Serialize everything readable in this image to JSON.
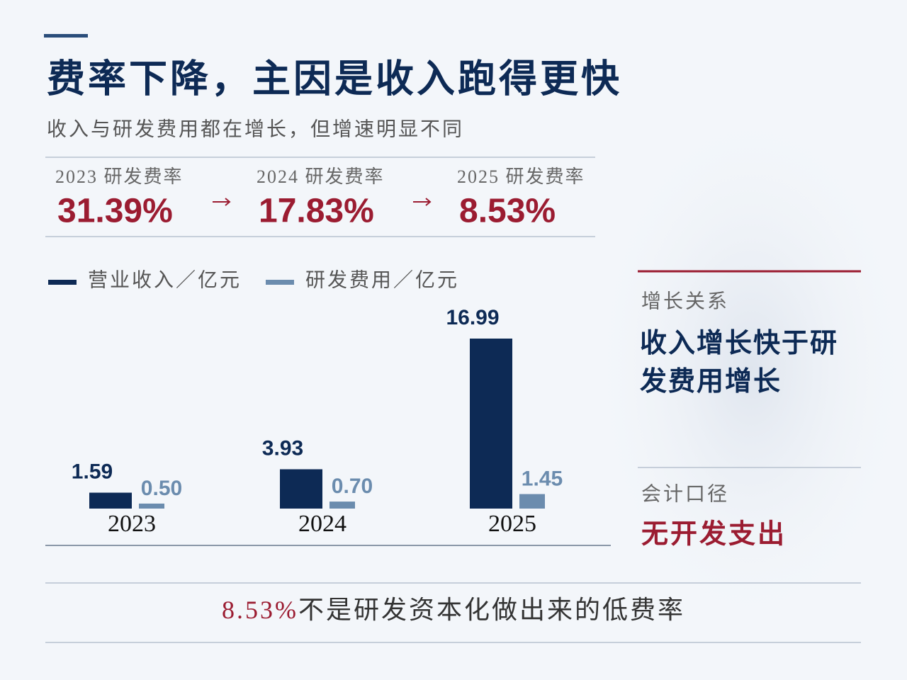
{
  "title": "费率下降，主因是收入跑得更快",
  "subtitle": "收入与研发费用都在增长，但增速明显不同",
  "rates": [
    {
      "label": "2023 研发费率",
      "value": "31.39%"
    },
    {
      "label": "2024 研发费率",
      "value": "17.83%"
    },
    {
      "label": "2025 研发费率",
      "value": "8.53%"
    }
  ],
  "side": {
    "growth_label": "增长关系",
    "growth_text": "收入增长快于研发费用增长",
    "accounting_label": "会计口径",
    "accounting_text": "无开发支出"
  },
  "footnote": {
    "highlight": "8.53%",
    "text": "不是研发资本化做出来的低费率"
  },
  "chart_data": {
    "type": "bar",
    "categories": [
      "2023",
      "2024",
      "2025"
    ],
    "series": [
      {
        "name": "营业收入／亿元",
        "color": "#0d2a55",
        "values": [
          1.59,
          3.93,
          16.99
        ]
      },
      {
        "name": "研发费用／亿元",
        "color": "#6b8cae",
        "values": [
          0.5,
          0.7,
          1.45
        ],
        "value_labels": [
          "0.50",
          "0.70",
          "1.45"
        ]
      }
    ]
  }
}
